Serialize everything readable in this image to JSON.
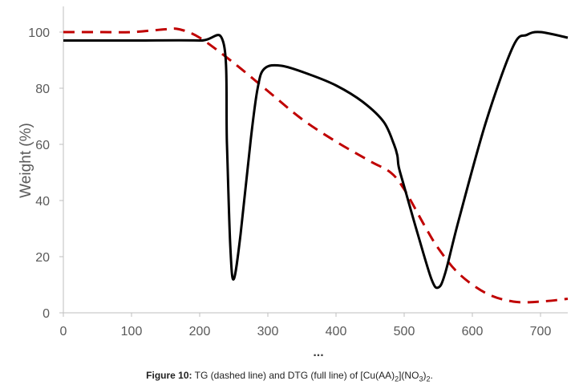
{
  "chart_data": {
    "type": "line",
    "title": "",
    "xlabel": "...",
    "ylabel": "Weight (%)",
    "xlim": [
      0,
      740
    ],
    "ylim": [
      0,
      100
    ],
    "x_ticks": [
      "0",
      "100",
      "200",
      "300",
      "400",
      "500",
      "600",
      "700"
    ],
    "y_ticks": [
      "0",
      "20",
      "40",
      "60",
      "80",
      "100"
    ],
    "grid": false,
    "legend": "none",
    "series": [
      {
        "style": "dashed",
        "color": "#c00000",
        "x": [
          0,
          50,
          100,
          150,
          170,
          200,
          250,
          300,
          350,
          400,
          450,
          480,
          500,
          530,
          550,
          580,
          620,
          660,
          700,
          740
        ],
        "y": [
          100,
          100,
          100,
          101,
          101,
          98,
          89,
          79,
          69,
          61,
          54,
          50,
          44,
          31,
          23,
          14,
          7,
          4,
          4,
          5
        ]
      },
      {
        "style": "solid",
        "color": "#000000",
        "x": [
          0,
          100,
          200,
          235,
          240,
          245,
          250,
          260,
          275,
          285,
          295,
          320,
          360,
          400,
          440,
          470,
          485,
          490,
          492,
          500,
          520,
          540,
          550,
          560,
          580,
          620,
          660,
          680,
          700,
          740
        ],
        "y": [
          97,
          97,
          97,
          96,
          60,
          23,
          12,
          28,
          62,
          80,
          87,
          88,
          85,
          81,
          75,
          68,
          60,
          56,
          52,
          45,
          28,
          12,
          9,
          14,
          33,
          68,
          95,
          99,
          100,
          98
        ]
      }
    ]
  },
  "caption": {
    "lead": "Figure 10:",
    "text_1": " TG (dashed line) and DTG (full line) of [Cu(AA)",
    "sub_1": "2",
    "text_2": "](NO",
    "sub_2": "3",
    "text_3": ")",
    "sub_3": "2",
    "text_4": "."
  }
}
